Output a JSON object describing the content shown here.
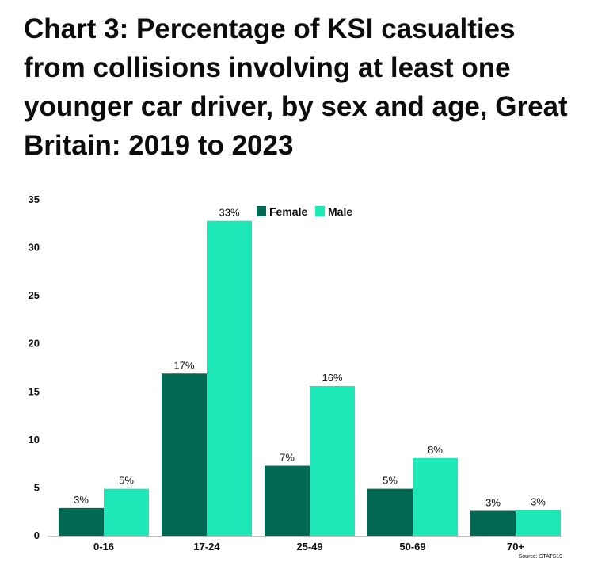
{
  "title": "Chart 3: Percentage of KSI casualties from collisions involving at least one younger car driver, by sex and age, Great Britain: 2019 to 2023",
  "source": "Source: STATS19",
  "colors": {
    "Female": "#006853",
    "Male": "#1ee8b8"
  },
  "chart_data": {
    "type": "bar",
    "categories": [
      "0-16",
      "17-24",
      "25-49",
      "50-69",
      "70+"
    ],
    "series": [
      {
        "name": "Female",
        "values": [
          2.9,
          16.9,
          7.3,
          4.9,
          2.6
        ],
        "labels": [
          "3%",
          "17%",
          "7%",
          "5%",
          "3%"
        ]
      },
      {
        "name": "Male",
        "values": [
          4.9,
          32.8,
          15.6,
          8.1,
          2.7
        ],
        "labels": [
          "5%",
          "33%",
          "16%",
          "8%",
          "3%"
        ]
      }
    ],
    "yticks": [
      0,
      5,
      10,
      15,
      20,
      25,
      30,
      35
    ],
    "ylim": [
      0,
      35
    ],
    "legend": "top-center",
    "grid": false,
    "xlabel": "",
    "ylabel": ""
  }
}
